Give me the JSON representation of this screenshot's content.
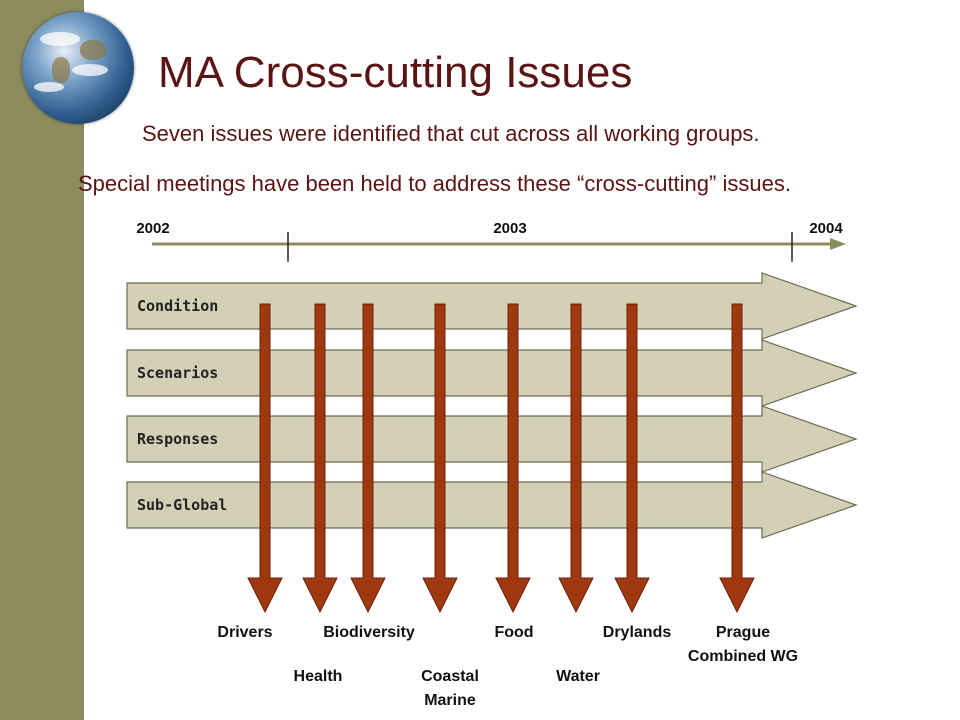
{
  "slide": {
    "title": "MA Cross-cutting Issues",
    "line1": "Seven issues were identified that cut across all working groups.",
    "line2": "Special meetings have been held to address these “cross-cutting” issues."
  },
  "timeline": {
    "years": [
      "2002",
      "2003",
      "2004"
    ]
  },
  "working_groups": [
    "Condition",
    "Scenarios",
    "Responses",
    "Sub-Global"
  ],
  "issues": [
    {
      "lines": [
        "Drivers"
      ],
      "row": 1
    },
    {
      "lines": [
        "Health"
      ],
      "row": 2
    },
    {
      "lines": [
        "Biodiversity"
      ],
      "row": 1
    },
    {
      "lines": [
        "Coastal",
        "Marine"
      ],
      "row": 2
    },
    {
      "lines": [
        "Food"
      ],
      "row": 1
    },
    {
      "lines": [
        "Water"
      ],
      "row": 2
    },
    {
      "lines": [
        "Drylands"
      ],
      "row": 1
    },
    {
      "lines": [
        "Prague",
        "Combined WG"
      ],
      "row": 1
    }
  ],
  "colors": {
    "title": "#5a1414",
    "sidebar": "#8c8c5e",
    "group_fill": "#d4d0b6",
    "group_stroke": "#6e6e55",
    "issue_arrow": "#a0380f",
    "timeline": "#8c8c5e"
  },
  "icons": {
    "logo": "globe-icon"
  }
}
